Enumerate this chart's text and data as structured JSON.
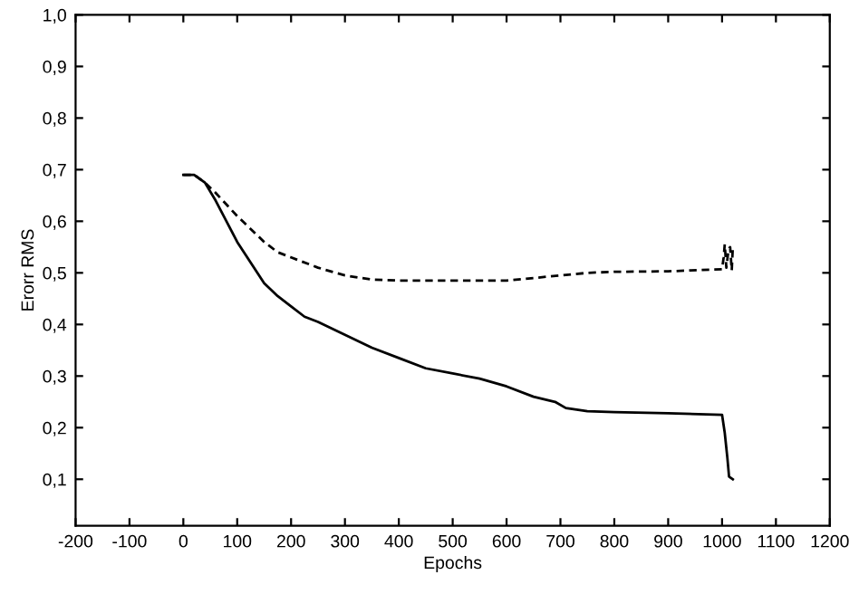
{
  "chart_data": {
    "type": "line",
    "xlabel": "Epochs",
    "ylabel": "Erorr RMS",
    "xlim": [
      -200,
      1200
    ],
    "ylim": [
      0.01,
      1.0
    ],
    "xticks": [
      -200,
      -100,
      0,
      100,
      200,
      300,
      400,
      500,
      600,
      700,
      800,
      900,
      1000,
      1100,
      1200
    ],
    "yticks": [
      {
        "value": 0.1,
        "label": "0,1"
      },
      {
        "value": 0.2,
        "label": "0,2"
      },
      {
        "value": 0.3,
        "label": "0,3"
      },
      {
        "value": 0.4,
        "label": "0,4"
      },
      {
        "value": 0.5,
        "label": "0,5"
      },
      {
        "value": 0.6,
        "label": "0,6"
      },
      {
        "value": 0.7,
        "label": "0,7"
      },
      {
        "value": 0.8,
        "label": "0,8"
      },
      {
        "value": 0.9,
        "label": "0,9"
      },
      {
        "value": 1.0,
        "label": "1,0"
      }
    ],
    "grid": false,
    "legend": false,
    "series": [
      {
        "color": "#000000",
        "line_style": "solid",
        "x": [
          0,
          20,
          40,
          60,
          80,
          100,
          125,
          150,
          175,
          200,
          225,
          250,
          300,
          350,
          400,
          450,
          500,
          550,
          600,
          650,
          690,
          710,
          750,
          800,
          900,
          1000,
          1005,
          1010,
          1013,
          1020
        ],
        "values": [
          0.69,
          0.69,
          0.675,
          0.64,
          0.6,
          0.56,
          0.52,
          0.48,
          0.455,
          0.435,
          0.415,
          0.405,
          0.38,
          0.355,
          0.335,
          0.315,
          0.305,
          0.295,
          0.28,
          0.26,
          0.25,
          0.238,
          0.232,
          0.23,
          0.228,
          0.225,
          0.19,
          0.14,
          0.105,
          0.1
        ]
      },
      {
        "color": "#000000",
        "line_style": "dashed",
        "x": [
          0,
          20,
          40,
          60,
          100,
          150,
          175,
          200,
          250,
          300,
          350,
          400,
          500,
          600,
          700,
          750,
          800,
          900,
          1000,
          1003,
          1005,
          1008,
          1012,
          1015,
          1018,
          1020
        ],
        "values": [
          0.69,
          0.69,
          0.675,
          0.655,
          0.61,
          0.56,
          0.54,
          0.53,
          0.51,
          0.495,
          0.487,
          0.485,
          0.485,
          0.485,
          0.495,
          0.5,
          0.502,
          0.503,
          0.507,
          0.53,
          0.555,
          0.51,
          0.545,
          0.55,
          0.505,
          0.55
        ]
      }
    ]
  }
}
